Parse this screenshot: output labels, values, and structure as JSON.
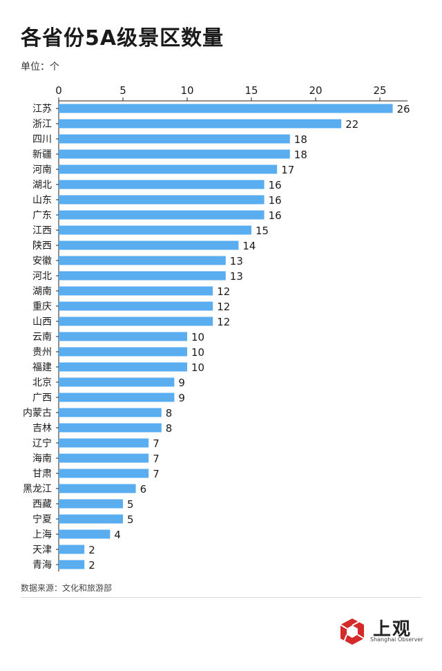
{
  "title": "各省份5A级景区数量",
  "unit_label": "单位：个",
  "source": "数据来源：文化和旅游部",
  "brand": {
    "name": "上观",
    "english": "Shanghai Observer",
    "logo_icon": "red-aperture-icon"
  },
  "colors": {
    "bar": "#5aaef0",
    "axis": "#222222",
    "text": "#1a1a1a"
  },
  "chart_data": {
    "type": "bar",
    "orientation": "horizontal",
    "x_axis_position": "top",
    "xlim": [
      0,
      27
    ],
    "xticks": [
      0,
      5,
      10,
      15,
      20,
      25
    ],
    "grid": false,
    "categories": [
      "江苏",
      "浙江",
      "四川",
      "新疆",
      "河南",
      "湖北",
      "山东",
      "广东",
      "江西",
      "陕西",
      "安徽",
      "河北",
      "湖南",
      "重庆",
      "山西",
      "云南",
      "贵州",
      "福建",
      "北京",
      "广西",
      "内蒙古",
      "吉林",
      "辽宁",
      "海南",
      "甘肃",
      "黑龙江",
      "西藏",
      "宁夏",
      "上海",
      "天津",
      "青海"
    ],
    "values": [
      26,
      22,
      18,
      18,
      17,
      16,
      16,
      16,
      15,
      14,
      13,
      13,
      12,
      12,
      12,
      10,
      10,
      10,
      9,
      9,
      8,
      8,
      7,
      7,
      7,
      6,
      5,
      5,
      4,
      2,
      2
    ]
  }
}
